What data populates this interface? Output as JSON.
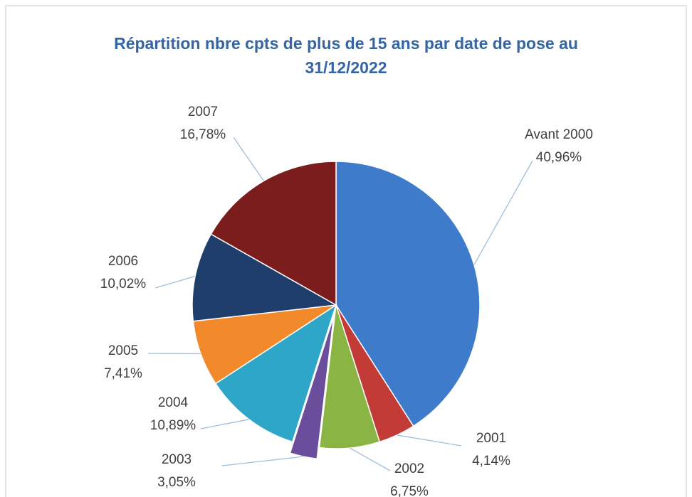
{
  "chart_data": {
    "type": "pie",
    "title": "Répartition nbre cpts de plus de 15 ans par date de pose au 31/12/2022",
    "categories": [
      "Avant 2000",
      "2001",
      "2002",
      "2003",
      "2004",
      "2005",
      "2006",
      "2007"
    ],
    "values": [
      40.96,
      4.14,
      6.75,
      3.05,
      10.89,
      7.41,
      10.02,
      16.78
    ],
    "value_labels": [
      "40,96%",
      "4,14%",
      "6,75%",
      "3,05%",
      "10,89%",
      "7,41%",
      "10,02%",
      "16,78%"
    ],
    "colors": [
      "#3e7bcb",
      "#c33b36",
      "#8ab443",
      "#6a4d9b",
      "#2ea6c7",
      "#f28a2c",
      "#1f3e6c",
      "#7b1d1c"
    ],
    "exploded": [
      "2003"
    ]
  }
}
